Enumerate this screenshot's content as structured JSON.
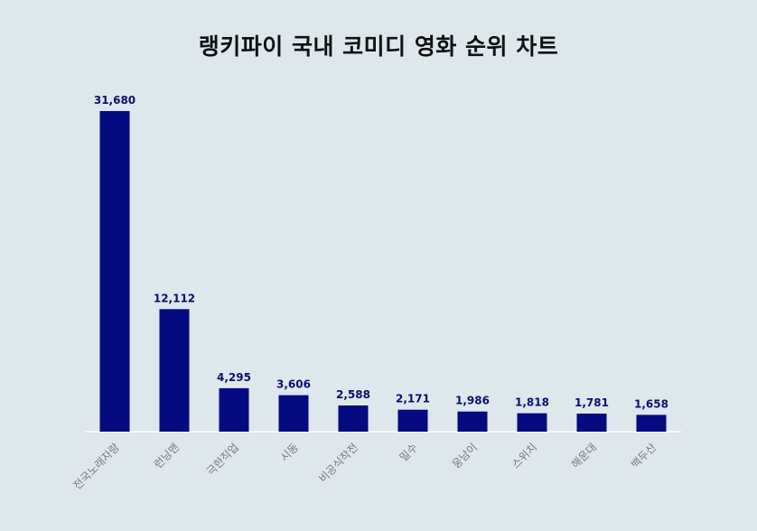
{
  "chart_data": {
    "type": "bar",
    "title": "랭키파이 국내 코미디 영화 순위 차트",
    "xlabel": "",
    "ylabel": "",
    "categories": [
      "전국노래자랑",
      "런닝맨",
      "극한직업",
      "시동",
      "비공식작전",
      "밀수",
      "웅남이",
      "스위치",
      "해운대",
      "백두산"
    ],
    "values": [
      31680,
      12112,
      4295,
      3606,
      2588,
      2171,
      1986,
      1818,
      1781,
      1658
    ],
    "value_labels": [
      "31,680",
      "12,112",
      "4,295",
      "3,606",
      "2,588",
      "2,171",
      "1,986",
      "1,818",
      "1,781",
      "1,658"
    ],
    "ylim": [
      0,
      31680
    ],
    "grid": false,
    "legend": "none",
    "colors": {
      "bar": "#040a80",
      "value_label": "#0b0f6a",
      "tick_label": "#777b80",
      "background": "#dde7ec"
    }
  }
}
